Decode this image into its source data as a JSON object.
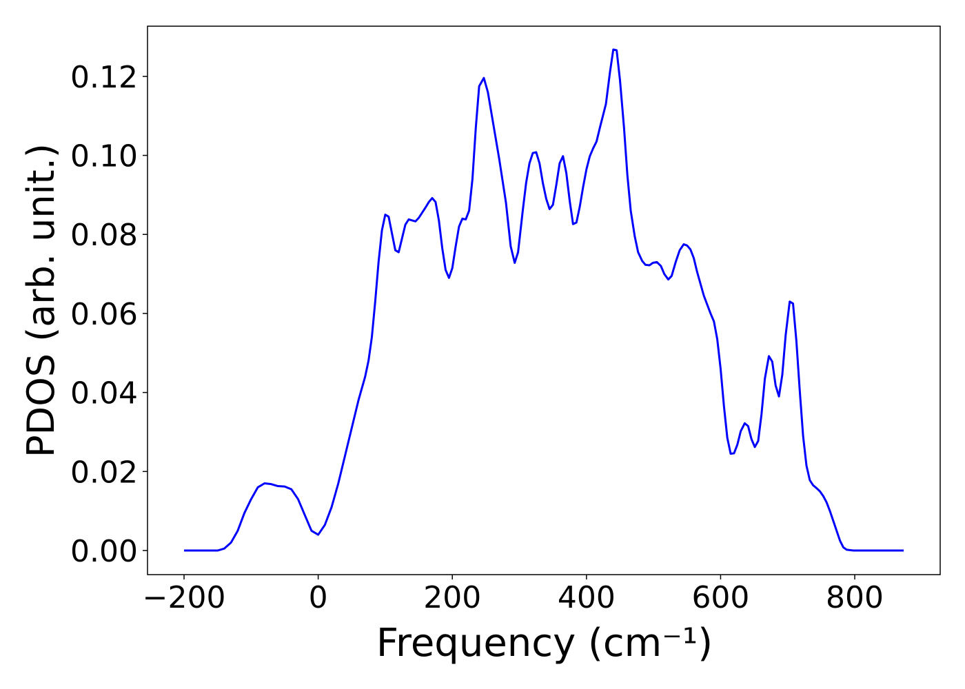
{
  "chart_data": {
    "type": "line",
    "xlabel": "Frequency (cm⁻¹)",
    "ylabel": "PDOS (arb. unit.)",
    "x": [
      -200,
      -150,
      -140,
      -130,
      -120,
      -110,
      -100,
      -90,
      -80,
      -70,
      -60,
      -50,
      -40,
      -30,
      -20,
      -10,
      0,
      10,
      20,
      30,
      40,
      50,
      60,
      70,
      75,
      80,
      85,
      90,
      95,
      100,
      105,
      115,
      120,
      130,
      135,
      145,
      150,
      160,
      165,
      170,
      175,
      180,
      185,
      190,
      195,
      200,
      205,
      210,
      215,
      220,
      225,
      230,
      235,
      240,
      247,
      253,
      260,
      270,
      280,
      287,
      293,
      298,
      305,
      310,
      315,
      320,
      325,
      330,
      335,
      340,
      345,
      350,
      355,
      360,
      365,
      370,
      375,
      380,
      385,
      390,
      395,
      400,
      405,
      410,
      415,
      420,
      429,
      435,
      440,
      445,
      450,
      456,
      461,
      466,
      472,
      477,
      483,
      488,
      494,
      499,
      505,
      511,
      516,
      522,
      527,
      533,
      539,
      545,
      550,
      555,
      560,
      565,
      575,
      585,
      590,
      595,
      600,
      605,
      610,
      615,
      620,
      625,
      630,
      636,
      641,
      646,
      651,
      656,
      661,
      666,
      672,
      677,
      682,
      687,
      692,
      697,
      703,
      708,
      713,
      718,
      723,
      728,
      733,
      738,
      743,
      748,
      753,
      758,
      763,
      768,
      773,
      778,
      783,
      788,
      798,
      873
    ],
    "series": [
      {
        "name": "PDOS",
        "color": "#0000ff",
        "values": [
          0,
          0,
          0.0005,
          0.002,
          0.005,
          0.0095,
          0.013,
          0.016,
          0.017,
          0.0168,
          0.0163,
          0.0162,
          0.0155,
          0.013,
          0.009,
          0.005,
          0.004,
          0.0065,
          0.011,
          0.017,
          0.024,
          0.031,
          0.038,
          0.044,
          0.048,
          0.054,
          0.063,
          0.073,
          0.081,
          0.085,
          0.0845,
          0.076,
          0.0755,
          0.0825,
          0.0838,
          0.0833,
          0.0842,
          0.0868,
          0.0882,
          0.0892,
          0.0882,
          0.0835,
          0.0765,
          0.071,
          0.069,
          0.0715,
          0.077,
          0.082,
          0.084,
          0.0838,
          0.086,
          0.094,
          0.107,
          0.1175,
          0.1196,
          0.116,
          0.109,
          0.099,
          0.088,
          0.077,
          0.0728,
          0.0755,
          0.086,
          0.093,
          0.098,
          0.1006,
          0.1008,
          0.098,
          0.093,
          0.089,
          0.0864,
          0.0875,
          0.0925,
          0.098,
          0.0998,
          0.0955,
          0.0885,
          0.0826,
          0.083,
          0.087,
          0.092,
          0.0965,
          0.0998,
          0.1018,
          0.1035,
          0.107,
          0.113,
          0.121,
          0.1268,
          0.1266,
          0.119,
          0.107,
          0.095,
          0.086,
          0.0795,
          0.0755,
          0.0733,
          0.0723,
          0.0722,
          0.0728,
          0.073,
          0.072,
          0.07,
          0.0686,
          0.0695,
          0.073,
          0.076,
          0.0775,
          0.0772,
          0.0762,
          0.074,
          0.0705,
          0.0645,
          0.06,
          0.058,
          0.0535,
          0.046,
          0.0365,
          0.0285,
          0.0245,
          0.0246,
          0.0268,
          0.0302,
          0.0322,
          0.0315,
          0.0282,
          0.0262,
          0.0277,
          0.0345,
          0.0435,
          0.0492,
          0.0478,
          0.0418,
          0.039,
          0.0445,
          0.0545,
          0.063,
          0.0625,
          0.053,
          0.0405,
          0.029,
          0.0215,
          0.0178,
          0.0165,
          0.0158,
          0.015,
          0.0138,
          0.0122,
          0.01,
          0.0075,
          0.005,
          0.0025,
          0.0008,
          0.0002,
          0,
          0
        ]
      }
    ],
    "xlim": [
      -254.5,
      927.4
    ],
    "xticks": [
      {
        "value": -200,
        "label": "−200"
      },
      0,
      200,
      400,
      600,
      800
    ],
    "ylim": [
      -0.0061,
      0.1327
    ],
    "yticks": [
      {
        "value": 0,
        "label": "0.00"
      },
      {
        "value": 0.02,
        "label": "0.02"
      },
      {
        "value": 0.04,
        "label": "0.04"
      },
      {
        "value": 0.06,
        "label": "0.06"
      },
      {
        "value": 0.08,
        "label": "0.08"
      },
      {
        "value": 0.1,
        "label": "0.10"
      },
      {
        "value": 0.12,
        "label": "0.12"
      }
    ]
  }
}
